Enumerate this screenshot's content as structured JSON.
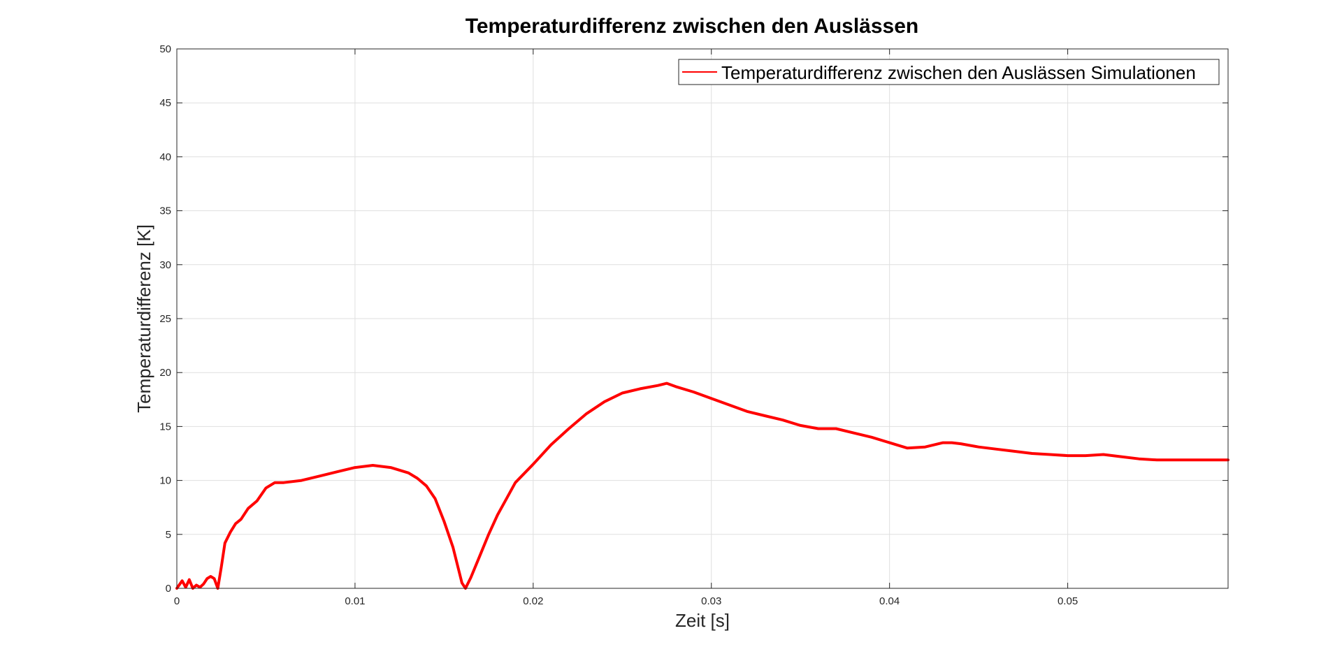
{
  "chart_data": {
    "type": "line",
    "title": "Temperaturdifferenz zwischen den Auslässen",
    "xlabel": "Zeit [s]",
    "ylabel": "Temperaturdifferenz [K]",
    "xlim": [
      0,
      0.059
    ],
    "ylim": [
      0,
      50
    ],
    "x_ticks": [
      0,
      0.01,
      0.02,
      0.03,
      0.04,
      0.05
    ],
    "x_tick_labels": [
      "0",
      "0.01",
      "0.02",
      "0.03",
      "0.04",
      "0.05"
    ],
    "y_ticks": [
      0,
      5,
      10,
      15,
      20,
      25,
      30,
      35,
      40,
      45,
      50
    ],
    "y_tick_labels": [
      "0",
      "5",
      "10",
      "15",
      "20",
      "25",
      "30",
      "35",
      "40",
      "45",
      "50"
    ],
    "grid": true,
    "legend_position": "top-right",
    "series": [
      {
        "name": "Temperaturdifferenz zwischen den Auslässen Simulationen",
        "color": "#ff0000",
        "points": [
          [
            0,
            0
          ],
          [
            0.0003,
            0.7
          ],
          [
            0.0005,
            0.1
          ],
          [
            0.0007,
            0.8
          ],
          [
            0.0009,
            0.0
          ],
          [
            0.0011,
            0.3
          ],
          [
            0.0013,
            0.1
          ],
          [
            0.0015,
            0.4
          ],
          [
            0.0017,
            0.9
          ],
          [
            0.0019,
            1.1
          ],
          [
            0.0021,
            0.9
          ],
          [
            0.0023,
            0.0
          ],
          [
            0.0025,
            2.0
          ],
          [
            0.0027,
            4.2
          ],
          [
            0.003,
            5.2
          ],
          [
            0.0033,
            6.0
          ],
          [
            0.0036,
            6.4
          ],
          [
            0.004,
            7.4
          ],
          [
            0.0045,
            8.1
          ],
          [
            0.005,
            9.3
          ],
          [
            0.0055,
            9.8
          ],
          [
            0.006,
            9.8
          ],
          [
            0.007,
            10.0
          ],
          [
            0.008,
            10.4
          ],
          [
            0.009,
            10.8
          ],
          [
            0.01,
            11.2
          ],
          [
            0.011,
            11.4
          ],
          [
            0.012,
            11.2
          ],
          [
            0.013,
            10.7
          ],
          [
            0.0135,
            10.2
          ],
          [
            0.014,
            9.5
          ],
          [
            0.0145,
            8.3
          ],
          [
            0.015,
            6.2
          ],
          [
            0.0155,
            3.8
          ],
          [
            0.016,
            0.5
          ],
          [
            0.0162,
            0.0
          ],
          [
            0.0165,
            1.0
          ],
          [
            0.017,
            3.0
          ],
          [
            0.0175,
            5.0
          ],
          [
            0.018,
            6.8
          ],
          [
            0.0185,
            8.3
          ],
          [
            0.019,
            9.8
          ],
          [
            0.02,
            11.5
          ],
          [
            0.021,
            13.3
          ],
          [
            0.022,
            14.8
          ],
          [
            0.023,
            16.2
          ],
          [
            0.024,
            17.3
          ],
          [
            0.025,
            18.1
          ],
          [
            0.026,
            18.5
          ],
          [
            0.027,
            18.8
          ],
          [
            0.0275,
            19.0
          ],
          [
            0.028,
            18.7
          ],
          [
            0.029,
            18.2
          ],
          [
            0.03,
            17.6
          ],
          [
            0.031,
            17.0
          ],
          [
            0.032,
            16.4
          ],
          [
            0.033,
            16.0
          ],
          [
            0.034,
            15.6
          ],
          [
            0.035,
            15.1
          ],
          [
            0.036,
            14.8
          ],
          [
            0.037,
            14.8
          ],
          [
            0.038,
            14.4
          ],
          [
            0.039,
            14.0
          ],
          [
            0.04,
            13.5
          ],
          [
            0.041,
            13.0
          ],
          [
            0.042,
            13.1
          ],
          [
            0.043,
            13.5
          ],
          [
            0.0435,
            13.5
          ],
          [
            0.044,
            13.4
          ],
          [
            0.045,
            13.1
          ],
          [
            0.046,
            12.9
          ],
          [
            0.047,
            12.7
          ],
          [
            0.048,
            12.5
          ],
          [
            0.049,
            12.4
          ],
          [
            0.05,
            12.3
          ],
          [
            0.051,
            12.3
          ],
          [
            0.052,
            12.4
          ],
          [
            0.053,
            12.2
          ],
          [
            0.054,
            12.0
          ],
          [
            0.055,
            11.9
          ],
          [
            0.056,
            11.9
          ],
          [
            0.057,
            11.9
          ],
          [
            0.058,
            11.9
          ],
          [
            0.059,
            11.9
          ]
        ]
      }
    ]
  }
}
